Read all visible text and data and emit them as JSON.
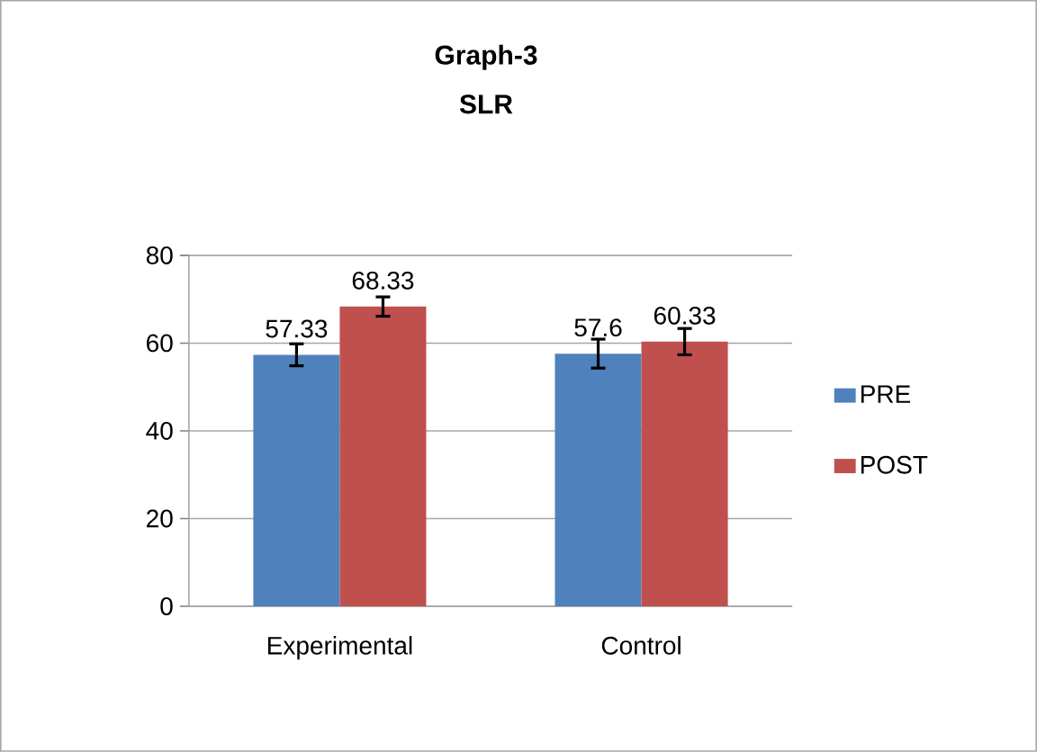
{
  "chart_data": {
    "type": "bar",
    "title": "Graph-3",
    "subtitle": "SLR",
    "categories": [
      "Experimental",
      "Control"
    ],
    "series": [
      {
        "name": "PRE",
        "color": "#4f81bd",
        "values": [
          57.33,
          57.6
        ],
        "errors": [
          2.5,
          3.3
        ]
      },
      {
        "name": "POST",
        "color": "#c0504d",
        "values": [
          68.33,
          60.33
        ],
        "errors": [
          2.2,
          3.0
        ]
      }
    ],
    "ylim": [
      0,
      80
    ],
    "yticks": [
      0,
      20,
      40,
      60,
      80
    ],
    "grid": "y",
    "legend": "right",
    "data_labels": true
  }
}
